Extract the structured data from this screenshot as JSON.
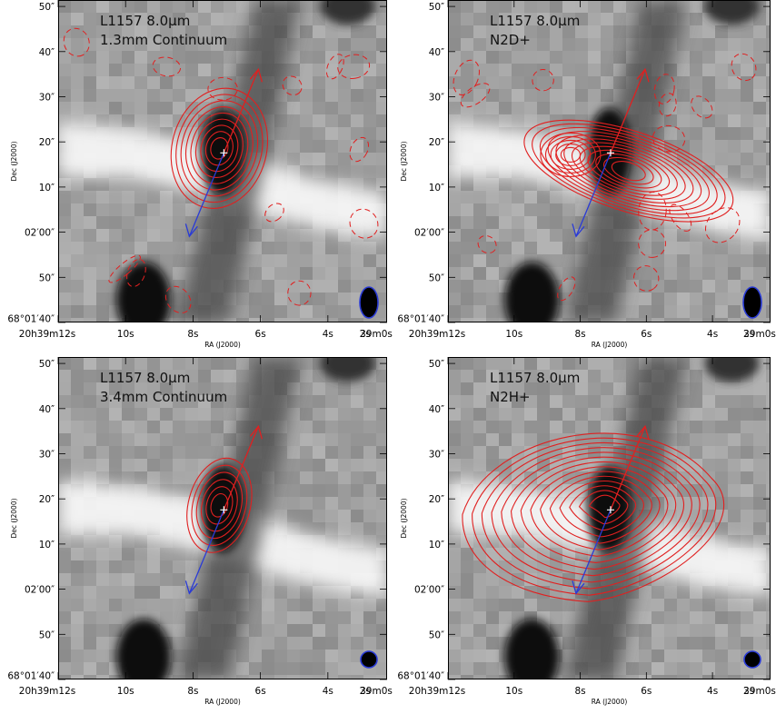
{
  "figure": {
    "x_axis_label": "RA (J2000)",
    "y_axis_label": "Dec (J2000)",
    "x_tick_labels": [
      "20h39m12s",
      "10s",
      "8s",
      "6s",
      "4s",
      "2s",
      "39m0s"
    ],
    "y_tick_labels": [
      "68°01′40″",
      "50″",
      "02′00″",
      "10″",
      "20″",
      "30″",
      "40″",
      "50″"
    ]
  },
  "chart_data": [
    {
      "type": "contour",
      "title": "L1157 8.0μm",
      "subtitle": "1.3mm Continuum",
      "background": "grayscale 8.0μm image",
      "contour_color": "#e02020",
      "outflow_arrow_color_red": "#e02020",
      "outflow_arrow_color_blue": "#2a3bd6",
      "beam_color": "#2a3bd6",
      "peak_ra_s": 6.3,
      "peak_dec_arcsec": 16,
      "contour_levels": 9,
      "negative_contours": true,
      "xlim_ra_s": [
        12.5,
        0
      ],
      "ylim_dec_arcsec": [
        -22,
        54
      ]
    },
    {
      "type": "contour",
      "title": "L1157 8.0μm",
      "subtitle": "N2D+",
      "background": "grayscale 8.0μm image",
      "contour_color": "#e02020",
      "outflow_arrow_color_red": "#e02020",
      "outflow_arrow_color_blue": "#2a3bd6",
      "beam_color": "#2a3bd6",
      "peak_ra_s": 5.2,
      "peak_dec_arcsec": 13,
      "contour_levels": 12,
      "negative_contours": true,
      "xlim_ra_s": [
        12.5,
        0
      ],
      "ylim_dec_arcsec": [
        -22,
        54
      ]
    },
    {
      "type": "contour",
      "title": "L1157 8.0μm",
      "subtitle": "3.4mm Continuum",
      "background": "grayscale 8.0μm image",
      "contour_color": "#e02020",
      "outflow_arrow_color_red": "#e02020",
      "outflow_arrow_color_blue": "#2a3bd6",
      "beam_color": "#2a3bd6",
      "peak_ra_s": 6.3,
      "peak_dec_arcsec": 16,
      "contour_levels": 6,
      "negative_contours": false,
      "xlim_ra_s": [
        12.5,
        0
      ],
      "ylim_dec_arcsec": [
        -22,
        54
      ]
    },
    {
      "type": "contour",
      "title": "L1157 8.0μm",
      "subtitle": "N2H+",
      "background": "grayscale 8.0μm image",
      "contour_color": "#e02020",
      "outflow_arrow_color_red": "#e02020",
      "outflow_arrow_color_blue": "#2a3bd6",
      "beam_color": "#2a3bd6",
      "peak_ra_s": 6.2,
      "peak_dec_arcsec": 15,
      "contour_levels": 14,
      "negative_contours": false,
      "xlim_ra_s": [
        12.5,
        0
      ],
      "ylim_dec_arcsec": [
        -22,
        54
      ]
    }
  ]
}
